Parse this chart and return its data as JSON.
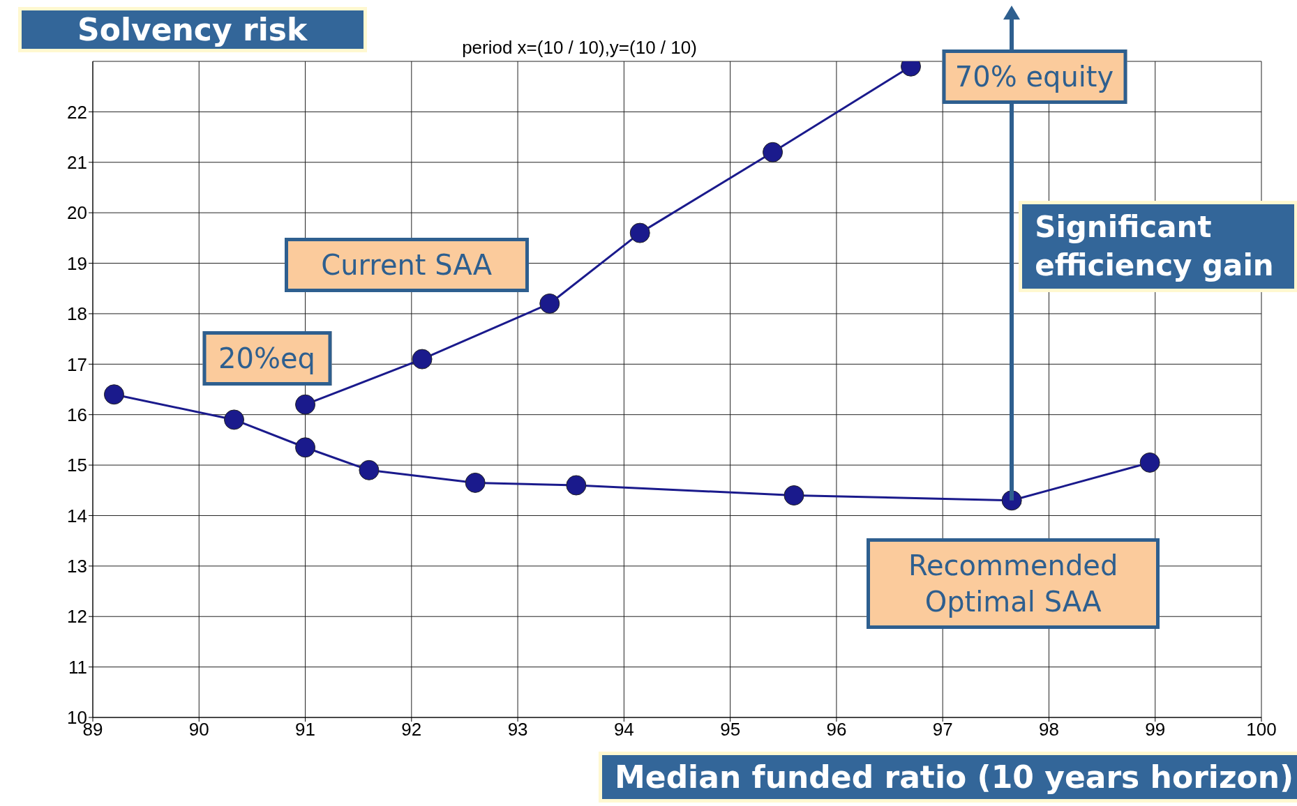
{
  "chart_data": {
    "type": "line",
    "title": "period x=(10 / 10),y=(10 / 10)",
    "xlabel": "Median funded ratio (10 years horizon)",
    "ylabel": "Solvency risk",
    "series": [
      {
        "color": "#1a1a8c",
        "x": [
          89.2,
          90.33,
          91.0,
          91.6,
          92.6,
          93.55,
          95.6,
          97.65,
          98.95
        ],
        "values": [
          16.4,
          15.9,
          15.35,
          14.9,
          14.65,
          14.6,
          14.4,
          14.3,
          15.05
        ]
      },
      {
        "color": "#1a1a8c",
        "x": [
          91.0,
          92.1,
          93.3,
          94.15,
          95.4,
          96.7
        ],
        "values": [
          16.2,
          17.1,
          18.2,
          19.6,
          21.2,
          22.9
        ]
      }
    ],
    "xlim": [
      89,
      100
    ],
    "xticks": [
      89,
      90,
      91,
      92,
      93,
      94,
      95,
      96,
      97,
      98,
      99,
      100
    ],
    "ylim": [
      10,
      23
    ],
    "yticks": [
      10,
      11,
      12,
      13,
      14,
      15,
      16,
      17,
      18,
      19,
      20,
      21,
      22
    ],
    "grid": true,
    "marker": "circle",
    "line_style": "solid",
    "annotations": [
      {
        "text": "Current SAA",
        "x": 93.3,
        "y": 18.2
      },
      {
        "text": "20%eq",
        "x": 91.0,
        "y": 16.2
      },
      {
        "text": "70% equity",
        "x": 96.7,
        "y": 22.9
      },
      {
        "text": "Recommended Optimal SAA",
        "x": 97.65,
        "y": 14.3
      },
      "Significant efficiency gain"
    ]
  }
}
